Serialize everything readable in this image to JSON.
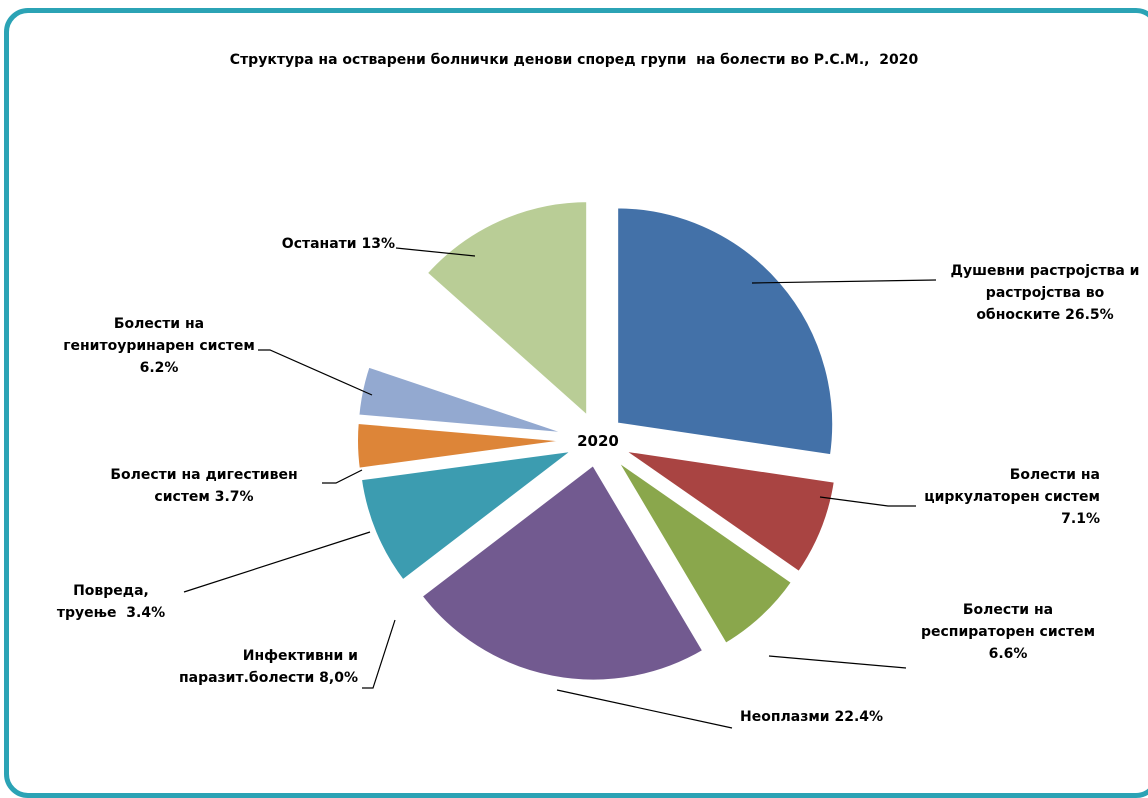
{
  "chart_data": {
    "type": "pie",
    "title": "Структура на остварени болнички денови според групи  на болести во Р.С.М.,  2020",
    "center_label": "2020",
    "slices": [
      {
        "label": "Душевни растројства и растројства во обноските",
        "value_text": "26.5%",
        "value": 26.5,
        "color": "#4371a8"
      },
      {
        "label": "Болести на циркулаторен систем",
        "value_text": "7.1%",
        "value": 7.1,
        "color": "#a94442"
      },
      {
        "label": "Болести на респираторен систем",
        "value_text": "6.6%",
        "value": 6.6,
        "color": "#8aa74c"
      },
      {
        "label": "Неоплазми",
        "value_text": "22.4%",
        "value": 22.4,
        "color": "#725a90"
      },
      {
        "label": "Инфективни и паразит.болести",
        "value_text": "8,0%",
        "value": 8.0,
        "color": "#3c9cb0"
      },
      {
        "label": "Повреда, труење",
        "value_text": "3.4%",
        "value": 3.4,
        "color": "#dd8538"
      },
      {
        "label": "Болести на дигестивен систем",
        "value_text": "3.7%",
        "value": 3.7,
        "color": "#93a9d0"
      },
      {
        "label": "Болести на генитоуринарен систем",
        "value_text": "6.2%",
        "value": 6.2,
        "color": "#ffffff"
      },
      {
        "label": "Останати",
        "value_text": "13%",
        "value": 13.0,
        "color": "#b9cd96"
      }
    ],
    "labels": {
      "l0": [
        "Душевни растројства и",
        "растројства во",
        "обноските 26.5%"
      ],
      "l1": [
        "Болести на",
        "циркулаторен систем",
        "7.1%"
      ],
      "l2": [
        "Болести на",
        "респираторен систем",
        "6.6%"
      ],
      "l3": [
        "Неоплазми 22.4%"
      ],
      "l4": [
        "Инфективни и",
        "паразит.болести 8,0%"
      ],
      "l5": [
        "Повреда,",
        "труење  3.4%"
      ],
      "l6": [
        "Болести на дигестивен",
        "систем 3.7%"
      ],
      "l7": [
        "Болести на",
        "генитоуринарен систем",
        "6.2%"
      ],
      "l8": [
        "Останати 13%"
      ]
    },
    "frame_color": "#2ba3b5"
  }
}
